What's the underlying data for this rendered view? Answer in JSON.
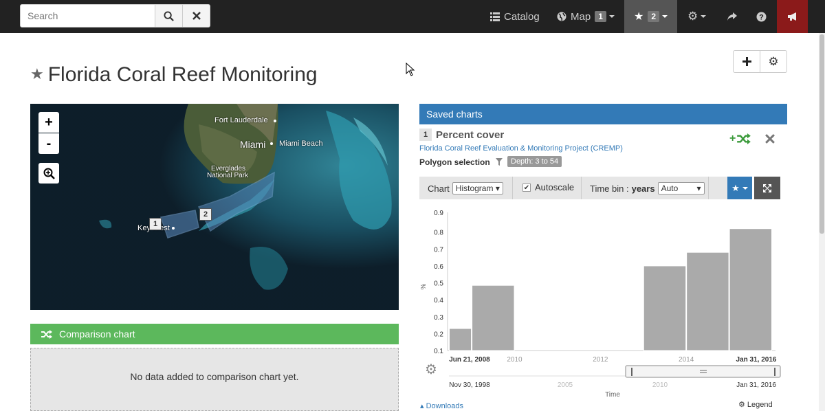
{
  "topbar": {
    "search_placeholder": "Search",
    "catalog_label": "Catalog",
    "map_label": "Map",
    "map_badge": "1",
    "favorites_badge": "2"
  },
  "page": {
    "title": "Florida Coral Reef Monitoring"
  },
  "map": {
    "zoom_in": "+",
    "zoom_out": "-",
    "labels": {
      "fort_lauderdale": "Fort Lauderdale",
      "miami": "Miami",
      "miami_beach": "Miami Beach",
      "everglades_1": "Everglades",
      "everglades_2": "National Park",
      "key_west": "Key West"
    },
    "markers": [
      "1",
      "2"
    ]
  },
  "comparison": {
    "title": "Comparison chart",
    "empty_text": "No data added to comparison chart yet."
  },
  "saved": {
    "title": "Saved charts",
    "index": "1",
    "chart_title": "Percent cover",
    "source_link": "Florida Coral Reef Evaluation & Monitoring Project (CREMP)",
    "selection_label": "Polygon selection",
    "depth_badge": "Depth: 3 to 54",
    "controls": {
      "chart_label": "Chart",
      "chart_type": "Histogram",
      "autoscale_label": "Autoscale",
      "timebin_label": "Time bin :",
      "timebin_unit": "years",
      "timebin_value": "Auto"
    },
    "downloads_label": "Downloads",
    "legend_label": "Legend"
  },
  "chart_data": {
    "type": "bar",
    "ylabel": "%",
    "xlabel": "Time",
    "ylim": [
      0.1,
      0.9
    ],
    "yticks": [
      "0.9",
      "0.8",
      "0.7",
      "0.6",
      "0.5",
      "0.4",
      "0.3",
      "0.2",
      "0.1"
    ],
    "xticks": [
      "Jun 21, 2008",
      "2010",
      "2012",
      "2014",
      "Jan 31, 2016"
    ],
    "navigator_ticks": [
      "Nov 30, 1998",
      "2005",
      "2010",
      "Jan 31, 2016"
    ],
    "bars": [
      {
        "start": 2008.47,
        "end": 2009.0,
        "value": 0.23
      },
      {
        "start": 2009.0,
        "end": 2010.0,
        "value": 0.485
      },
      {
        "start": 2013.0,
        "end": 2014.0,
        "value": 0.6
      },
      {
        "start": 2014.0,
        "end": 2015.0,
        "value": 0.68
      },
      {
        "start": 2015.0,
        "end": 2016.0,
        "value": 0.82
      }
    ],
    "xrange": [
      2008.47,
      2016.08
    ]
  }
}
